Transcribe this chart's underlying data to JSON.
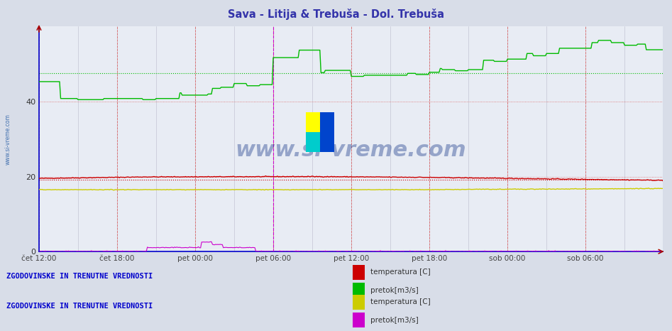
{
  "title": "Sava - Litija & Trebuša - Dol. Trebuša",
  "title_color": "#3333aa",
  "bg_color": "#d8dde8",
  "plot_bg_color": "#e8ecf4",
  "yticks": [
    0,
    20,
    40
  ],
  "ylim": [
    0,
    60
  ],
  "x_labels": [
    "čet 12:00",
    "čet 18:00",
    "pet 00:00",
    "pet 06:00",
    "pet 12:00",
    "pet 18:00",
    "sob 00:00",
    "sob 06:00"
  ],
  "x_positions": [
    0,
    72,
    144,
    216,
    288,
    360,
    432,
    504
  ],
  "total_points": 576,
  "watermark": "www.si-vreme.com",
  "watermark_color": "#1a3a8a",
  "legend1_title": "ZGODOVINSKE IN TRENUTNE VREDNOSTI",
  "legend2_title": "ZGODOVINSKE IN TRENUTNE VREDNOSTI",
  "legend1_items": [
    {
      "label": "temperatura [C]",
      "color": "#cc0000"
    },
    {
      "label": "pretok[m3/s]",
      "color": "#00bb00"
    }
  ],
  "legend2_items": [
    {
      "label": "temperatura [C]",
      "color": "#cccc00"
    },
    {
      "label": "pretok[m3/s]",
      "color": "#cc00cc"
    }
  ],
  "sava_temp_dotted": 19.2,
  "sava_flow_dotted": 47.5,
  "logo_colors": [
    "#ffff00",
    "#0044cc",
    "#00cccc",
    "#0044cc"
  ]
}
